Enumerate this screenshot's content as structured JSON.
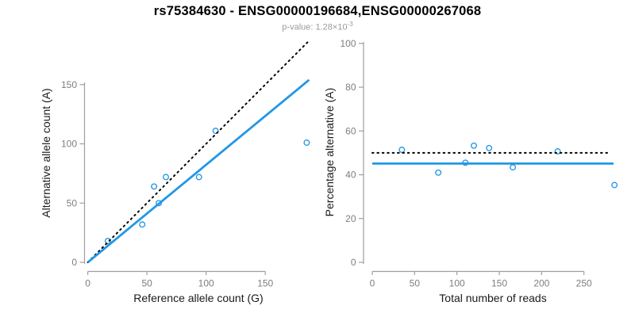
{
  "header": {
    "title": "rs75384630 - ENSG00000196684,ENSG00000267068",
    "subtitle_base": "p-value: 1.28×10",
    "subtitle_exponent": "-3"
  },
  "colors": {
    "accent_blue": "#2297E6",
    "identity_black": "#000000",
    "axis_gray": "#9e9e9e",
    "tick_label_gray": "#7e7e7e",
    "axis_title": "#1a1a1a",
    "title": "#000000",
    "subtitle_gray": "#9b9b9b"
  },
  "chart_data": [
    {
      "type": "scatter",
      "name": "allele-counts-scatter",
      "xlabel": "Reference allele count (G)",
      "ylabel": "Alternative allele count (A)",
      "xticks": [
        0,
        50,
        100,
        150
      ],
      "yticks": [
        0,
        50,
        100,
        150
      ],
      "xlim": [
        0,
        190
      ],
      "ylim": [
        0,
        190
      ],
      "points": [
        [
          17,
          18
        ],
        [
          46,
          32
        ],
        [
          56,
          64
        ],
        [
          60,
          50
        ],
        [
          66,
          72
        ],
        [
          94,
          72
        ],
        [
          108,
          111
        ],
        [
          185,
          101
        ]
      ],
      "lines": [
        {
          "name": "identity-line",
          "style": "dotted",
          "color_key": "identity_black",
          "x1": 0,
          "y1": 0,
          "x2": 186,
          "y2": 186
        },
        {
          "name": "fit-line",
          "style": "solid",
          "color_key": "accent_blue",
          "x1": 0,
          "y1": 0,
          "x2": 187,
          "y2": 154
        }
      ]
    },
    {
      "type": "scatter",
      "name": "percentage-vs-reads-scatter",
      "xlabel": "Total number of reads",
      "ylabel": "Percentage alternative (A)",
      "xticks": [
        0,
        50,
        100,
        150,
        200,
        250
      ],
      "yticks": [
        0,
        20,
        40,
        60,
        80,
        100
      ],
      "xlim": [
        0,
        290
      ],
      "ylim": [
        0,
        100
      ],
      "points": [
        [
          35,
          51.4
        ],
        [
          78,
          41.0
        ],
        [
          110,
          45.5
        ],
        [
          120,
          53.3
        ],
        [
          138,
          52.2
        ],
        [
          166,
          43.4
        ],
        [
          219,
          50.7
        ],
        [
          286,
          35.3
        ]
      ],
      "lines": [
        {
          "name": "expected-50pct-line",
          "style": "dotted",
          "color_key": "identity_black",
          "x1": 0,
          "y1": 50,
          "x2": 281,
          "y2": 50
        },
        {
          "name": "mean-percentage-line",
          "style": "solid",
          "color_key": "accent_blue",
          "x1": 0,
          "y1": 45.1,
          "x2": 285,
          "y2": 45.1
        }
      ]
    }
  ]
}
